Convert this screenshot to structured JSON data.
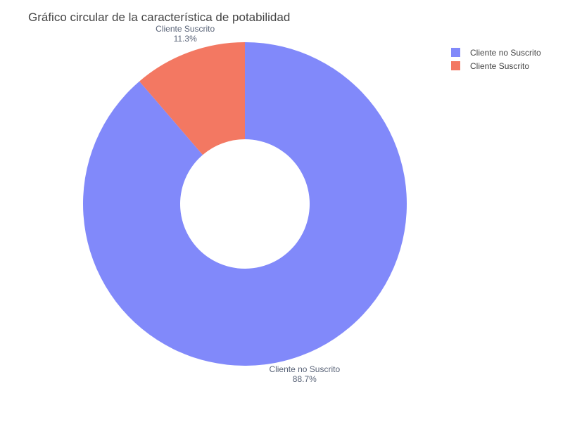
{
  "chart_data": {
    "type": "pie",
    "title": "Gráfico circular de la característica de potabilidad",
    "hole": 0.4,
    "direction": "clockwise",
    "start_angle_deg": 0,
    "legend_position": "top-right",
    "slices": [
      {
        "label": "Cliente no Suscrito",
        "value": 88.7,
        "percent_text": "88.7%",
        "color": "#8189FA"
      },
      {
        "label": "Cliente Suscrito",
        "value": 11.3,
        "percent_text": "11.3%",
        "color": "#F37862"
      }
    ]
  }
}
